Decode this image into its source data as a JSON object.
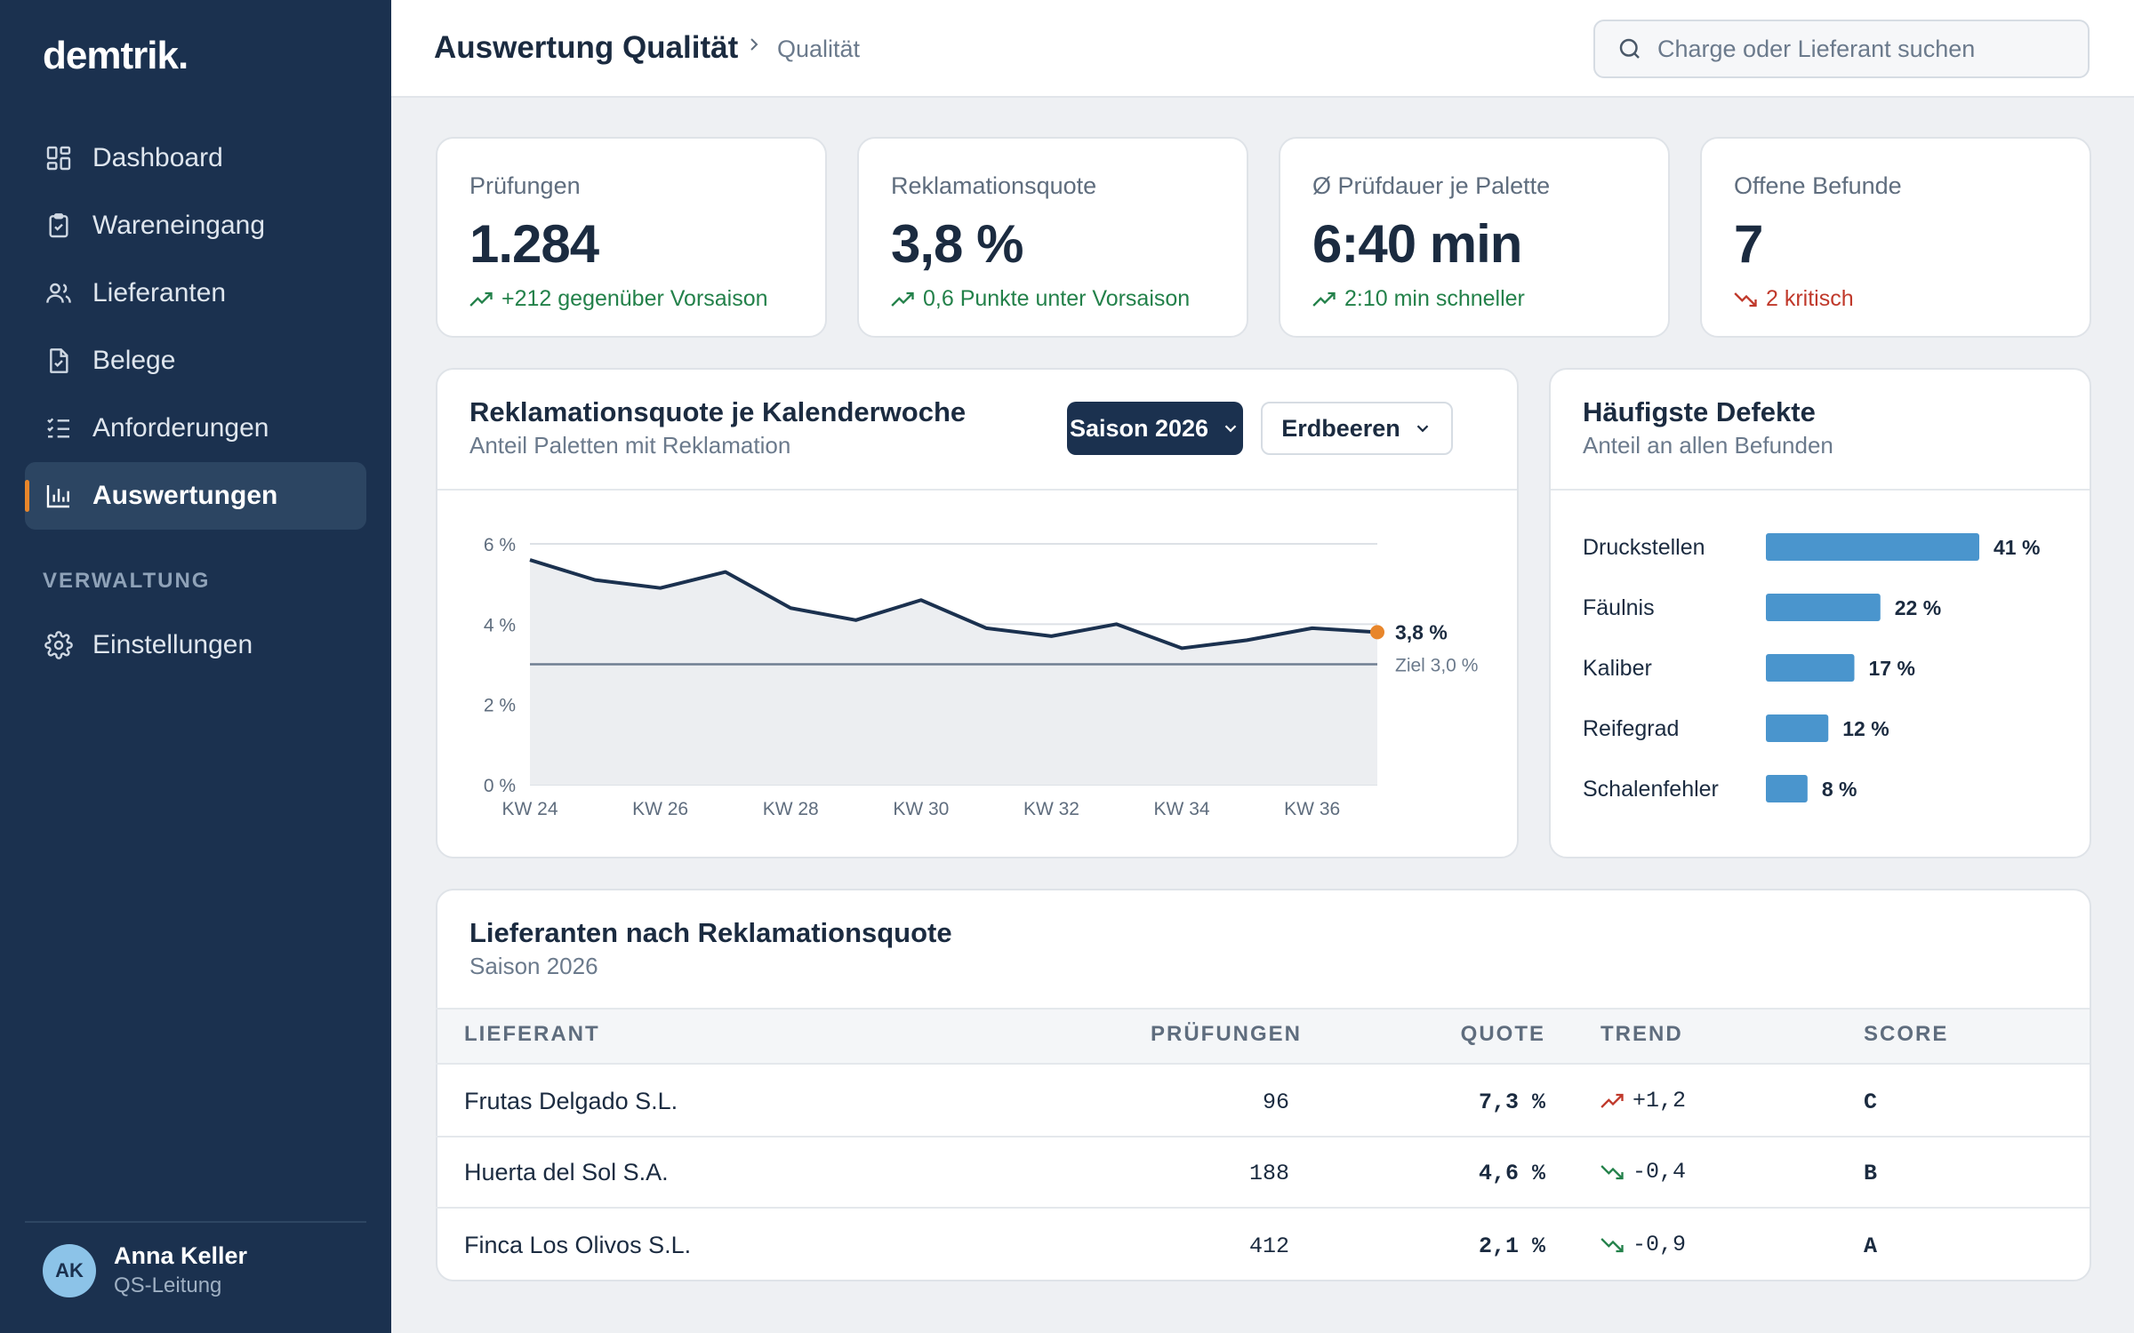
{
  "app": {
    "logo": "demtrik."
  },
  "sidebar": {
    "items": [
      {
        "label": "Dashboard",
        "icon": "dashboard-icon"
      },
      {
        "label": "Wareneingang",
        "icon": "clipboard-check-icon"
      },
      {
        "label": "Lieferanten",
        "icon": "users-icon"
      },
      {
        "label": "Belege",
        "icon": "document-check-icon"
      },
      {
        "label": "Anforderungen",
        "icon": "checklist-icon"
      },
      {
        "label": "Auswertungen",
        "icon": "bar-chart-icon",
        "active": true
      }
    ],
    "section_label": "VERWALTUNG",
    "settings_label": "Einstellungen",
    "user": {
      "initials": "AK",
      "name": "Anna Keller",
      "role": "QS-Leitung"
    }
  },
  "header": {
    "title": "Auswertung Qualität",
    "breadcrumb": "Qualität",
    "search_placeholder": "Charge oder Lieferant suchen"
  },
  "kpis": [
    {
      "label": "Prüfungen",
      "value": "1.284",
      "delta": "+212 gegenüber Vorsaison",
      "trend": "up"
    },
    {
      "label": "Reklamationsquote",
      "value": "3,8 %",
      "delta": "0,6 Punkte unter Vorsaison",
      "trend": "up"
    },
    {
      "label": "Ø Prüfdauer je Palette",
      "value": "6:40 min",
      "delta": "2:10 min schneller",
      "trend": "up"
    },
    {
      "label": "Offene Befunde",
      "value": "7",
      "delta": "2 kritisch",
      "trend": "down"
    }
  ],
  "line_card": {
    "title": "Reklamationsquote je Kalenderwoche",
    "subtitle": "Anteil Paletten mit Reklamation",
    "season_button": "Saison 2026",
    "product_button": "Erdbeeren",
    "last_label": "3,8 %",
    "target_label": "Ziel 3,0 %"
  },
  "defects_card": {
    "title": "Häufigste Defekte",
    "subtitle": "Anteil an allen Befunden"
  },
  "chart_data": [
    {
      "type": "line",
      "x": [
        "KW 24",
        "KW 25",
        "KW 26",
        "KW 27",
        "KW 28",
        "KW 29",
        "KW 30",
        "KW 31",
        "KW 32",
        "KW 33",
        "KW 34",
        "KW 35",
        "KW 36",
        "KW 37"
      ],
      "values": [
        5.6,
        5.1,
        4.9,
        5.3,
        4.4,
        4.1,
        4.6,
        3.9,
        3.7,
        4.0,
        3.4,
        3.6,
        3.9,
        3.8
      ],
      "xticks": [
        "KW 24",
        "KW 26",
        "KW 28",
        "KW 30",
        "KW 32",
        "KW 34",
        "KW 36"
      ],
      "yticks": [
        "0 %",
        "2 %",
        "4 %",
        "6 %"
      ],
      "ylim": [
        0,
        6
      ],
      "target": 3.0,
      "area_fill": true,
      "colors": {
        "line": "#1b314f",
        "area": "#eceef1",
        "target": "#6f7f92",
        "last_point": "#e8862b",
        "grid": "#dde1e6"
      }
    },
    {
      "type": "bar",
      "orientation": "horizontal",
      "categories": [
        "Druckstellen",
        "Fäulnis",
        "Kaliber",
        "Reifegrad",
        "Schalenfehler"
      ],
      "values": [
        41,
        22,
        17,
        12,
        8
      ],
      "value_labels": [
        "41 %",
        "22 %",
        "17 %",
        "12 %",
        "8 %"
      ],
      "colors": {
        "bar": "#4a95cd"
      }
    }
  ],
  "suppliers": {
    "title": "Lieferanten nach Reklamationsquote",
    "subtitle": "Saison 2026",
    "columns": [
      "LIEFERANT",
      "PRÜFUNGEN",
      "QUOTE",
      "TREND",
      "SCORE"
    ],
    "rows": [
      {
        "name": "Frutas Delgado S.L.",
        "checks": "96",
        "rate": "7,3 %",
        "trend": "+1,2",
        "trend_dir": "up",
        "score": "C"
      },
      {
        "name": "Huerta del Sol S.A.",
        "checks": "188",
        "rate": "4,6 %",
        "trend": "-0,4",
        "trend_dir": "down",
        "score": "B"
      },
      {
        "name": "Finca Los Olivos S.L.",
        "checks": "412",
        "rate": "2,1 %",
        "trend": "-0,9",
        "trend_dir": "down",
        "score": "A"
      }
    ]
  },
  "colors": {
    "sidebar": "#1b314f",
    "accent": "#e8862b",
    "positive": "#23814a",
    "negative": "#c0392b"
  }
}
